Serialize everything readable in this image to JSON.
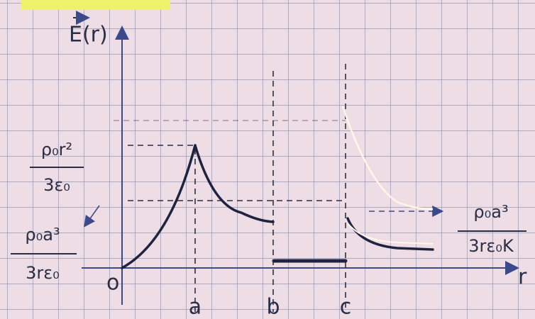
{
  "axes": {
    "y_label": "E(r)",
    "x_label": "r",
    "origin": "o"
  },
  "x_marks": [
    "a",
    "b",
    "c"
  ],
  "annotations": [
    {
      "numerator": "ρ₀r²",
      "denominator": "3ε₀"
    },
    {
      "numerator": "ρ₀a³",
      "denominator": "3rε₀"
    },
    {
      "numerator": "ρ₀a³",
      "denominator": "3rε₀K"
    }
  ]
}
